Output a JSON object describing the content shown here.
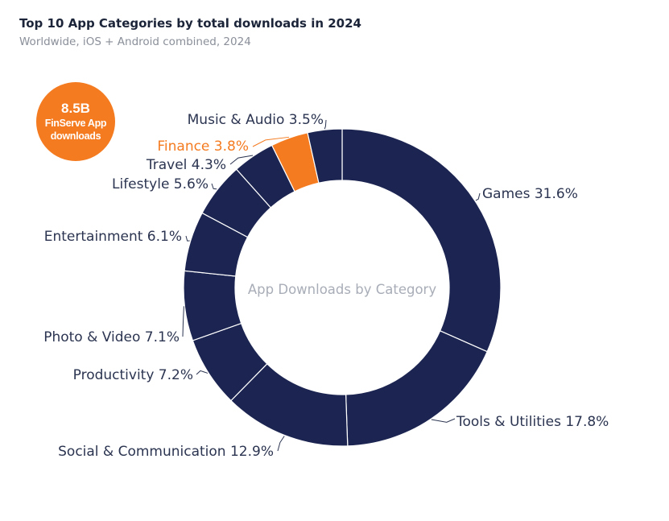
{
  "header": {
    "title": "Top 10 App Categories by total downloads in 2024",
    "subtitle": "Worldwide, iOS + Android combined, 2024"
  },
  "badge": {
    "value": "8.5B",
    "line1": "FinServe App",
    "line2": "downloads"
  },
  "colors": {
    "base": "#1c2551",
    "highlight": "#f47b20",
    "label": "#2b3450",
    "center_label": "#a8adb7"
  },
  "chart_data": {
    "type": "pie",
    "style": "donut",
    "center_label": "App Downloads by Category",
    "slices": [
      {
        "label": "Games",
        "value": 31.6,
        "display": "Games 31.6%"
      },
      {
        "label": "Tools & Utilities",
        "value": 17.8,
        "display": "Tools & Utilities 17.8%"
      },
      {
        "label": "Social & Communication",
        "value": 12.9,
        "display": "Social & Communication 12.9%"
      },
      {
        "label": "Productivity",
        "value": 7.2,
        "display": "Productivity 7.2%"
      },
      {
        "label": "Photo & Video",
        "value": 7.1,
        "display": "Photo & Video 7.1%"
      },
      {
        "label": "Entertainment",
        "value": 6.1,
        "display": "Entertainment 6.1%"
      },
      {
        "label": "Lifestyle",
        "value": 5.6,
        "display": "Lifestyle 5.6%"
      },
      {
        "label": "Travel",
        "value": 4.3,
        "display": "Travel 4.3%"
      },
      {
        "label": "Finance",
        "value": 3.8,
        "display": "Finance 3.8%",
        "highlight": true
      },
      {
        "label": "Music & Audio",
        "value": 3.5,
        "display": "Music & Audio 3.5%"
      }
    ]
  }
}
